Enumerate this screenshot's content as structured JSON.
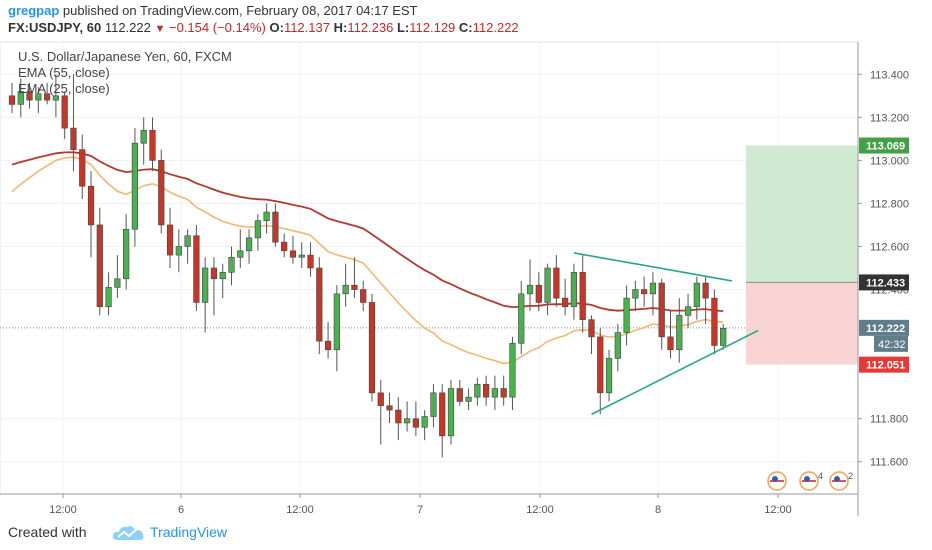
{
  "header": {
    "user": "gregpap",
    "published_text": " published on TradingView.com, February 08, 2017 04:17 EST",
    "symbol": "FX:USDJPY, 60",
    "last": "112.222",
    "change": "−0.154 (−0.14%)",
    "o_label": "O:",
    "o_value": "112.137",
    "h_label": "H:",
    "h_value": "112.236",
    "l_label": "L:",
    "l_value": "112.129",
    "c_label": "C:",
    "c_value": "112.222"
  },
  "legend": {
    "instrument": "U.S. Dollar/Japanese Yen, 60, FXCM",
    "ema55": "EMA (55, close)",
    "ema25": "EMA (25, close)"
  },
  "footer": {
    "created_with": "Created with",
    "brand": "TradingView"
  },
  "colors": {
    "up": "#4caf50",
    "down": "#c0392b",
    "ema55": "#b03a2e",
    "ema25": "#f0b773",
    "target_zone": "#c8e6c9",
    "stop_zone": "#f8cfcf",
    "trendline": "#26a688"
  },
  "chart_data": {
    "type": "candlestick",
    "ylim": [
      111.45,
      113.55
    ],
    "y_ticks": [
      "113.400",
      "113.200",
      "113.000",
      "112.800",
      "112.600",
      "112.400",
      "111.800",
      "111.600"
    ],
    "x_ticks": [
      "12:00",
      "6",
      "12:00",
      "7",
      "12:00",
      "8",
      "12:00"
    ],
    "price_tags": [
      {
        "label": "113.069",
        "value": 113.069,
        "color": "#43a047"
      },
      {
        "label": "112.433",
        "value": 112.433,
        "color": "#333333"
      },
      {
        "label": "112.222",
        "value": 112.222,
        "color": "#607d8b"
      },
      {
        "label": "112.051",
        "value": 112.051,
        "color": "#e53935"
      }
    ],
    "countdown": "42:32",
    "position": {
      "entry": 112.433,
      "target": 113.069,
      "stop": 112.051
    },
    "ohlc": [
      [
        113.3,
        113.36,
        113.22,
        113.26
      ],
      [
        113.26,
        113.38,
        113.2,
        113.32
      ],
      [
        113.32,
        113.36,
        113.24,
        113.28
      ],
      [
        113.28,
        113.34,
        113.22,
        113.31
      ],
      [
        113.31,
        113.36,
        113.26,
        113.28
      ],
      [
        113.28,
        113.4,
        113.2,
        113.3
      ],
      [
        113.3,
        113.32,
        113.1,
        113.15
      ],
      [
        113.15,
        113.4,
        112.95,
        113.05
      ],
      [
        113.05,
        113.12,
        112.82,
        112.88
      ],
      [
        112.88,
        112.95,
        112.55,
        112.7
      ],
      [
        112.7,
        112.78,
        112.28,
        112.32
      ],
      [
        112.32,
        112.48,
        112.28,
        112.41
      ],
      [
        112.41,
        112.56,
        112.36,
        112.45
      ],
      [
        112.45,
        112.75,
        112.4,
        112.68
      ],
      [
        112.68,
        113.15,
        112.6,
        113.08
      ],
      [
        113.08,
        113.2,
        112.98,
        113.14
      ],
      [
        113.14,
        113.2,
        112.95,
        113.0
      ],
      [
        113.0,
        113.05,
        112.66,
        112.7
      ],
      [
        112.7,
        112.78,
        112.5,
        112.56
      ],
      [
        112.56,
        112.68,
        112.48,
        112.6
      ],
      [
        112.6,
        112.68,
        112.52,
        112.65
      ],
      [
        112.65,
        112.7,
        112.3,
        112.34
      ],
      [
        112.34,
        112.55,
        112.2,
        112.5
      ],
      [
        112.5,
        112.55,
        112.28,
        112.45
      ],
      [
        112.45,
        112.52,
        112.36,
        112.48
      ],
      [
        112.48,
        112.6,
        112.42,
        112.55
      ],
      [
        112.55,
        112.68,
        112.5,
        112.58
      ],
      [
        112.58,
        112.68,
        112.52,
        112.64
      ],
      [
        112.64,
        112.75,
        112.58,
        112.72
      ],
      [
        112.72,
        112.8,
        112.66,
        112.76
      ],
      [
        112.76,
        112.8,
        112.6,
        112.62
      ],
      [
        112.62,
        112.66,
        112.55,
        112.58
      ],
      [
        112.58,
        112.65,
        112.52,
        112.55
      ],
      [
        112.55,
        112.62,
        112.5,
        112.56
      ],
      [
        112.56,
        112.62,
        112.46,
        112.5
      ],
      [
        112.5,
        112.55,
        112.1,
        112.16
      ],
      [
        112.16,
        112.25,
        112.08,
        112.12
      ],
      [
        112.12,
        112.42,
        112.02,
        112.38
      ],
      [
        112.38,
        112.52,
        112.32,
        112.42
      ],
      [
        112.42,
        112.55,
        112.36,
        112.4
      ],
      [
        112.4,
        112.44,
        112.3,
        112.34
      ],
      [
        112.34,
        112.38,
        111.88,
        111.92
      ],
      [
        111.92,
        111.98,
        111.68,
        111.86
      ],
      [
        111.86,
        111.92,
        111.78,
        111.84
      ],
      [
        111.84,
        111.9,
        111.7,
        111.78
      ],
      [
        111.78,
        111.88,
        111.74,
        111.8
      ],
      [
        111.8,
        111.88,
        111.72,
        111.76
      ],
      [
        111.76,
        111.84,
        111.7,
        111.81
      ],
      [
        111.81,
        111.96,
        111.76,
        111.92
      ],
      [
        111.92,
        111.96,
        111.62,
        111.72
      ],
      [
        111.72,
        111.98,
        111.68,
        111.94
      ],
      [
        111.94,
        111.98,
        111.86,
        111.88
      ],
      [
        111.88,
        111.94,
        111.84,
        111.9
      ],
      [
        111.9,
        111.99,
        111.86,
        111.96
      ],
      [
        111.96,
        112.0,
        111.86,
        111.9
      ],
      [
        111.9,
        112.0,
        111.84,
        111.94
      ],
      [
        111.94,
        112.0,
        111.86,
        111.9
      ],
      [
        111.9,
        112.18,
        111.84,
        112.15
      ],
      [
        112.15,
        112.44,
        112.1,
        112.38
      ],
      [
        112.38,
        112.54,
        112.3,
        112.42
      ],
      [
        112.42,
        112.48,
        112.3,
        112.34
      ],
      [
        112.34,
        112.52,
        112.28,
        112.5
      ],
      [
        112.5,
        112.56,
        112.32,
        112.36
      ],
      [
        112.36,
        112.45,
        112.28,
        112.32
      ],
      [
        112.32,
        112.52,
        112.26,
        112.48
      ],
      [
        112.48,
        112.56,
        112.2,
        112.26
      ],
      [
        112.26,
        112.28,
        112.1,
        112.18
      ],
      [
        112.18,
        112.22,
        111.82,
        111.92
      ],
      [
        111.92,
        112.12,
        111.88,
        112.08
      ],
      [
        112.08,
        112.24,
        112.02,
        112.2
      ],
      [
        112.2,
        112.42,
        112.14,
        112.36
      ],
      [
        112.36,
        112.44,
        112.3,
        112.4
      ],
      [
        112.4,
        112.46,
        112.32,
        112.38
      ],
      [
        112.38,
        112.48,
        112.28,
        112.43
      ],
      [
        112.43,
        112.45,
        112.12,
        112.18
      ],
      [
        112.18,
        112.3,
        112.08,
        112.12
      ],
      [
        112.12,
        112.36,
        112.06,
        112.28
      ],
      [
        112.28,
        112.38,
        112.22,
        112.32
      ],
      [
        112.32,
        112.46,
        112.26,
        112.43
      ],
      [
        112.43,
        112.46,
        112.24,
        112.36
      ],
      [
        112.36,
        112.4,
        112.1,
        112.14
      ],
      [
        112.14,
        112.24,
        112.12,
        112.22
      ]
    ],
    "annotations": {
      "channel_upper": [
        [
          64,
          112.57
        ],
        [
          82,
          112.44
        ]
      ],
      "channel_lower": [
        [
          66,
          111.82
        ],
        [
          85,
          112.21
        ]
      ]
    }
  }
}
